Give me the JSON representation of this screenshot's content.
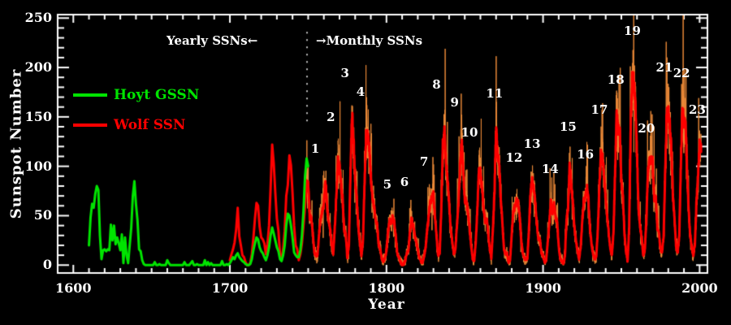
{
  "chart_data": {
    "type": "line",
    "title": "",
    "background": "#000000",
    "axis_color": "#ffffff",
    "xlabel": "Year",
    "ylabel": "Sunspot Number",
    "xlim": [
      1590,
      2005
    ],
    "ylim": [
      -8,
      253.5
    ],
    "x_ticks": [
      1600,
      1700,
      1800,
      1900,
      2000
    ],
    "x_minor_step": 10,
    "y_ticks": [
      0,
      50,
      100,
      150,
      200,
      250
    ],
    "y_minor_step": 10,
    "grid": false,
    "legend_position": "upper-left-inside",
    "legend": {
      "items": [
        {
          "label": "Hoyt GSSN",
          "color": "#00e400"
        },
        {
          "label": "Wolf SSN",
          "color": "#ff0000"
        }
      ]
    },
    "annotations": {
      "yearly": "Yearly SSNs←",
      "monthly": "→Monthly SSNs",
      "divider_year": 1749,
      "divider_y_range_values": [
        145,
        236
      ],
      "divider_style": "dotted white vertical line"
    },
    "monthly_overlay": {
      "name": "Monthly SSNs (noisy envelope around Wolf SSN after 1749)",
      "color": "#ec8a38",
      "start_year": 1749,
      "rel_amp": 0.22,
      "abs_amp": 6,
      "clip_max": 253
    },
    "series": [
      {
        "name": "Hoyt GSSN",
        "color": "#00e400",
        "resolution": "yearly",
        "start_year": 1610,
        "values": [
          20,
          48,
          62,
          58,
          72,
          80,
          76,
          30,
          6,
          15,
          16,
          14,
          16,
          15,
          41,
          25,
          40,
          21,
          28,
          22,
          15,
          31,
          2,
          28,
          10,
          2,
          20,
          38,
          70,
          85,
          62,
          45,
          16,
          14,
          5,
          1,
          0,
          0,
          0,
          0,
          0,
          0,
          3,
          0,
          0,
          1,
          0,
          0,
          0,
          0,
          5,
          2,
          0,
          0,
          0,
          0,
          0,
          0,
          0,
          0,
          0,
          3,
          0,
          0,
          0,
          2,
          4,
          0,
          0,
          1,
          0,
          0,
          0,
          0,
          5,
          0,
          3,
          0,
          2,
          0,
          0,
          0,
          0,
          0,
          0,
          4,
          0,
          0,
          1,
          0,
          2,
          5,
          8,
          6,
          10,
          12,
          8,
          6,
          4,
          3,
          1,
          0,
          0,
          1,
          6,
          15,
          22,
          28,
          26,
          18,
          14,
          12,
          8,
          5,
          10,
          18,
          30,
          38,
          32,
          25,
          18,
          14,
          6,
          4,
          10,
          20,
          40,
          52,
          50,
          40,
          28,
          13,
          10,
          8,
          8,
          15,
          30,
          55,
          90,
          108,
          100
        ]
      },
      {
        "name": "Wolf SSN",
        "color": "#ff0000",
        "resolution": "yearly to 1749, monthly-smoothed after",
        "start_year": 1700,
        "values": [
          5,
          11,
          16,
          23,
          36,
          58,
          29,
          20,
          10,
          8,
          3,
          0,
          0,
          2,
          11,
          27,
          47,
          63,
          60,
          39,
          28,
          26,
          22,
          11,
          21,
          40,
          78,
          122,
          103,
          73,
          47,
          35,
          11,
          5,
          16,
          34,
          70,
          81,
          111,
          101,
          73,
          40,
          20,
          16,
          5,
          11,
          22,
          40,
          60,
          81,
          83,
          48,
          48,
          31,
          12,
          10,
          10,
          32,
          48,
          54,
          63,
          86,
          61,
          45,
          36,
          21,
          11,
          38,
          70,
          106,
          101,
          82,
          66,
          35,
          31,
          7,
          20,
          92,
          154,
          126,
          85,
          68,
          38,
          23,
          10,
          24,
          83,
          132,
          131,
          118,
          90,
          67,
          60,
          47,
          41,
          21,
          16,
          6,
          4,
          7,
          15,
          34,
          45,
          43,
          48,
          42,
          28,
          10,
          8,
          3,
          0,
          1,
          5,
          12,
          14,
          35,
          46,
          41,
          30,
          24,
          16,
          7,
          4,
          2,
          9,
          17,
          36,
          50,
          64,
          67,
          71,
          48,
          28,
          9,
          13,
          57,
          122,
          138,
          103,
          86,
          63,
          37,
          24,
          11,
          15,
          40,
          62,
          98,
          125,
          96,
          66,
          65,
          54,
          39,
          21,
          7,
          4,
          23,
          55,
          94,
          96,
          77,
          59,
          44,
          47,
          31,
          16,
          7,
          37,
          74,
          139,
          111,
          102,
          66,
          45,
          17,
          11,
          12,
          3,
          6,
          32,
          54,
          60,
          64,
          64,
          52,
          25,
          13,
          7,
          6,
          7,
          36,
          73,
          85,
          78,
          64,
          42,
          26,
          27,
          12,
          10,
          3,
          5,
          24,
          42,
          64,
          54,
          62,
          49,
          44,
          19,
          6,
          4,
          1,
          10,
          47,
          57,
          104,
          81,
          64,
          38,
          26,
          14,
          6,
          17,
          44,
          64,
          69,
          78,
          65,
          36,
          21,
          11,
          6,
          9,
          36,
          80,
          114,
          110,
          89,
          68,
          48,
          31,
          16,
          10,
          33,
          93,
          152,
          136,
          135,
          84,
          69,
          32,
          14,
          4,
          38,
          142,
          190,
          185,
          159,
          112,
          54,
          38,
          28,
          10,
          15,
          47,
          94,
          106,
          106,
          105,
          67,
          69,
          38,
          34,
          16,
          13,
          28,
          93,
          155,
          155,
          140,
          116,
          67,
          46,
          18,
          13,
          29,
          100,
          158,
          143,
          146,
          94,
          55,
          30,
          18,
          9,
          22,
          64,
          93,
          120
        ]
      }
    ],
    "cycle_labels": [
      {
        "n": "1",
        "year": 1754.5,
        "value": 118
      },
      {
        "n": "2",
        "year": 1764.5,
        "value": 150
      },
      {
        "n": "3",
        "year": 1773.5,
        "value": 194
      },
      {
        "n": "4",
        "year": 1783.5,
        "value": 175
      },
      {
        "n": "5",
        "year": 1800.5,
        "value": 82
      },
      {
        "n": "6",
        "year": 1811.5,
        "value": 84
      },
      {
        "n": "7",
        "year": 1824.0,
        "value": 105
      },
      {
        "n": "8",
        "year": 1832.0,
        "value": 183
      },
      {
        "n": "9",
        "year": 1843.5,
        "value": 165
      },
      {
        "n": "10",
        "year": 1853.0,
        "value": 134
      },
      {
        "n": "11",
        "year": 1869.0,
        "value": 174
      },
      {
        "n": "12",
        "year": 1881.5,
        "value": 109
      },
      {
        "n": "13",
        "year": 1893.0,
        "value": 123
      },
      {
        "n": "14",
        "year": 1904.5,
        "value": 97
      },
      {
        "n": "15",
        "year": 1916.0,
        "value": 140
      },
      {
        "n": "16",
        "year": 1927.0,
        "value": 112
      },
      {
        "n": "17",
        "year": 1936.0,
        "value": 157
      },
      {
        "n": "18",
        "year": 1946.5,
        "value": 188
      },
      {
        "n": "19",
        "year": 1957.0,
        "value": 237
      },
      {
        "n": "20",
        "year": 1966.0,
        "value": 138
      },
      {
        "n": "21",
        "year": 1977.5,
        "value": 200
      },
      {
        "n": "22",
        "year": 1988.5,
        "value": 194
      },
      {
        "n": "23",
        "year": 1998.5,
        "value": 157
      }
    ]
  }
}
